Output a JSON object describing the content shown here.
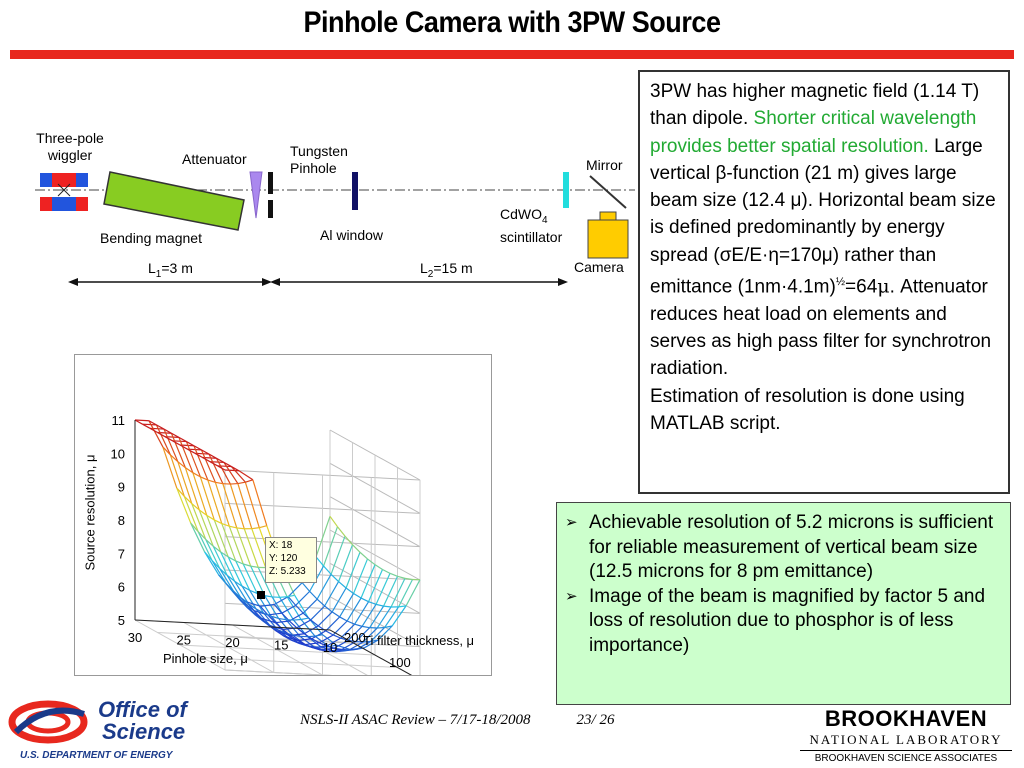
{
  "title": "Pinhole Camera with 3PW Source",
  "diagram": {
    "wiggler_label_1": "Three-pole",
    "wiggler_label_2": "wiggler",
    "attenuator": "Attenuator",
    "pinhole_label_1": "Tungsten",
    "pinhole_label_2": "Pinhole",
    "mirror": "Mirror",
    "cdwo4": "CdWO",
    "cdwo4_sub": "4",
    "scintillator": "scintillator",
    "bending_magnet": "Bending magnet",
    "al_window": "Al window",
    "camera": "Camera",
    "l1_main": "L",
    "l1_sub": "1",
    "l1_val": "=3 m",
    "l2_main": "L",
    "l2_sub": "2",
    "l2_val": "=15 m"
  },
  "description": {
    "part1": "3PW has higher magnetic field (1.14 T) than dipole. ",
    "part2_green": "Shorter critical wavelength provides better spatial resolution.",
    "part3": " Large vertical β-function (21 m) gives large beam size (12.4 μ). Horizontal beam size is defined predominantly by energy spread (σE/E·η=170μ) rather than emittance (1nm·4.1m)",
    "part3_sup": "½",
    "part4": "=64",
    "part4_mu": "μ",
    "part5": ". Attenuator reduces heat load on elements and serves as high pass filter for synchrotron radiation.",
    "part6": "Estimation of resolution is done using MATLAB script."
  },
  "bullets": [
    "Achievable resolution of 5.2 microns is sufficient for reliable measurement of vertical beam size (12.5 microns for 8 pm emittance)",
    "Image of the beam is magnified by factor 5 and loss of resolution due to phosphor is of less importance)"
  ],
  "bullet_marker": "➢",
  "chart_data": {
    "type": "surface",
    "zlabel": "Source resolution, μ",
    "xlabel": "Pinhole size, μ",
    "ylabel": "Ti filter thickness, μ",
    "z_ticks": [
      "5",
      "6",
      "7",
      "8",
      "9",
      "10",
      "11"
    ],
    "x_ticks": [
      "30",
      "25",
      "20",
      "15",
      "10"
    ],
    "y_ticks": [
      "0",
      "100",
      "200"
    ],
    "z_range": [
      5,
      11
    ],
    "x_range": [
      10,
      30
    ],
    "y_range": [
      0,
      200
    ],
    "datatip": {
      "x": "X: 18",
      "y": "Y: 120",
      "z": "Z: 5.233"
    }
  },
  "footer": {
    "text": "NSLS-II ASAC  Review  – 7/17-18/2008",
    "page": "23/ 26"
  },
  "logos": {
    "doe_line1": "Office of",
    "doe_line2": "Science",
    "doe_line3": "U.S. DEPARTMENT OF ENERGY",
    "bnl_line1": "BROOKHAVEN",
    "bnl_line2": "NATIONAL LABORATORY",
    "bnl_line3": "BROOKHAVEN SCIENCE ASSOCIATES"
  },
  "colors": {
    "title_bar": "#e8281e",
    "green_text": "#22aa33",
    "bullet_bg": "#ccffcc",
    "magnet_green": "#88cc22",
    "camera_yellow": "#ffcc00",
    "attenuator_violet": "#aa88ee",
    "scintillator_cyan": "#22dddd"
  }
}
